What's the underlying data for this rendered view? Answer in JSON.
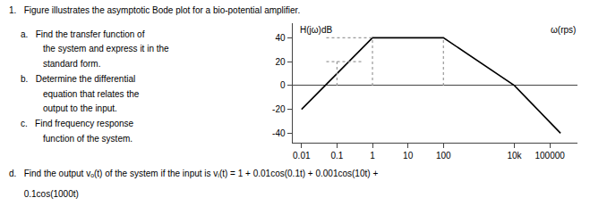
{
  "chart_data": {
    "type": "line",
    "title": "H(jω)dB",
    "x_label": "ω(rps)",
    "log": "x",
    "x": [
      0.01,
      1,
      100,
      10000,
      200000
    ],
    "values": [
      -20,
      40,
      40,
      0,
      -40
    ],
    "color": "#000000",
    "guides_vertical": [
      {
        "x": 0.1,
        "y0": 0,
        "y1": 20
      },
      {
        "x": 1,
        "y0": 0,
        "y1": 40
      },
      {
        "x": 100,
        "y0": 0,
        "y1": 40
      }
    ],
    "guides_horizontal": [
      {
        "y": 40,
        "x0": 0.05,
        "x1": 1.0
      },
      {
        "y": 20,
        "x0": 0.05,
        "x1": 0.55
      }
    ],
    "guide_color": "#999999",
    "guide_line_style": "dotted",
    "xlim": [
      0.0055,
      600000
    ],
    "xticks": [
      0.01,
      0.1,
      1,
      10,
      100,
      {
        "value": 10000,
        "label": "10k"
      },
      100000
    ],
    "ylim": [
      -48,
      52
    ],
    "yticks": [
      -40,
      -20,
      0,
      20,
      40
    ],
    "grid": false,
    "header": "1.   Figure illustrates the asymptotic Bode plot for a bio-potential amplifier.",
    "notes": [
      "a.   Find the transfer function of",
      "the system and express it in the",
      "standard form.",
      "b.   Determine the differential",
      "equation that relates the",
      "output to the input.",
      "c.   Find frequency response",
      "function of the system."
    ],
    "footer": [
      "d.   Find the output vₒ(t) of the system if the input is vᵢ(t) = 1 + 0.01cos(0.1t) + 0.001cos(10t) +",
      "      0.1cos(1000t)"
    ]
  }
}
